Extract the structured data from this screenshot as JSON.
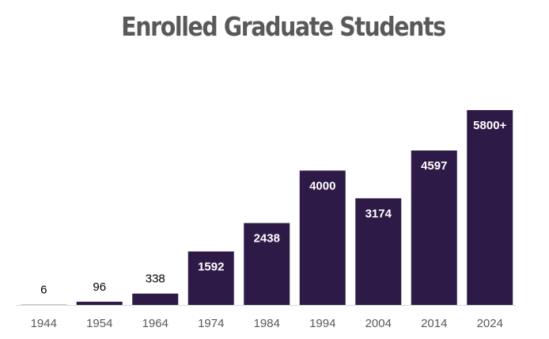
{
  "chart_data": {
    "type": "bar",
    "title": "Enrolled Graduate Students",
    "xlabel": "",
    "ylabel": "",
    "categories": [
      "1944",
      "1954",
      "1964",
      "1974",
      "1984",
      "1994",
      "2004",
      "2014",
      "2024"
    ],
    "values": [
      6,
      96,
      338,
      1592,
      2438,
      4000,
      3174,
      4597,
      5800
    ],
    "data_labels": [
      "6",
      "96",
      "338",
      "1592",
      "2438",
      "4000",
      "3174",
      "4597",
      "5800+"
    ],
    "ylim": [
      0,
      5800
    ],
    "grid": false,
    "legend": "none",
    "bar_color": "#2e1a47",
    "axis_color": "#d9d9d9",
    "label_inside_color": "#ffffff",
    "label_outside_color": "#000000"
  }
}
